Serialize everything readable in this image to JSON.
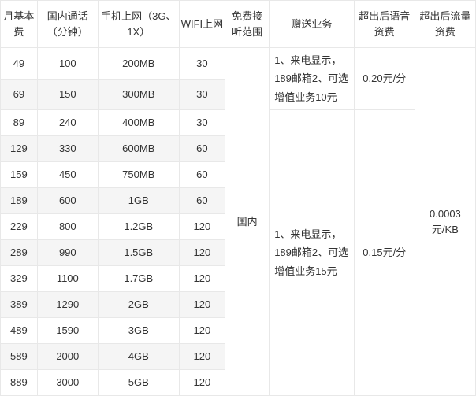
{
  "headers": {
    "fee": "月基本费",
    "call": "国内通话（分钟）",
    "data": "手机上网（3G、1X）",
    "wifi": "WIFI上网",
    "range": "免费接听范围",
    "bonus": "赠送业务",
    "voice": "超出后语音资费",
    "flow": "超出后流量资费"
  },
  "rows": [
    {
      "fee": "49",
      "call": "100",
      "data": "200MB",
      "wifi": "30"
    },
    {
      "fee": "69",
      "call": "150",
      "data": "300MB",
      "wifi": "30"
    },
    {
      "fee": "89",
      "call": "240",
      "data": "400MB",
      "wifi": "30"
    },
    {
      "fee": "129",
      "call": "330",
      "data": "600MB",
      "wifi": "60"
    },
    {
      "fee": "159",
      "call": "450",
      "data": "750MB",
      "wifi": "60"
    },
    {
      "fee": "189",
      "call": "600",
      "data": "1GB",
      "wifi": "60"
    },
    {
      "fee": "229",
      "call": "800",
      "data": "1.2GB",
      "wifi": "120"
    },
    {
      "fee": "289",
      "call": "990",
      "data": "1.5GB",
      "wifi": "120"
    },
    {
      "fee": "329",
      "call": "1100",
      "data": "1.7GB",
      "wifi": "120"
    },
    {
      "fee": "389",
      "call": "1290",
      "data": "2GB",
      "wifi": "120"
    },
    {
      "fee": "489",
      "call": "1590",
      "data": "3GB",
      "wifi": "120"
    },
    {
      "fee": "589",
      "call": "2000",
      "data": "4GB",
      "wifi": "120"
    },
    {
      "fee": "889",
      "call": "3000",
      "data": "5GB",
      "wifi": "120"
    }
  ],
  "merged": {
    "range": "国内",
    "bonus1": "1、来电显示，189邮箱2、可选增值业务10元",
    "bonus2": "1、来电显示，189邮箱2、可选增值业务15元",
    "voice1": "0.20元/分",
    "voice2": "0.15元/分",
    "flow": "0.0003元/KB"
  }
}
